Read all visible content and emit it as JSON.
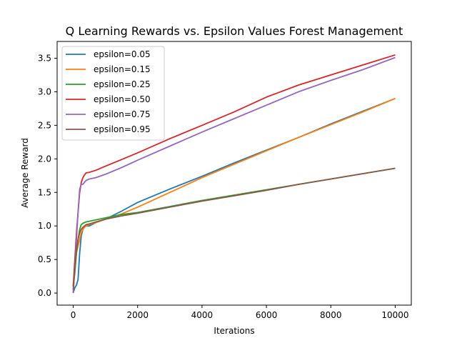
{
  "chart_data": {
    "type": "line",
    "title": "Q Learning Rewards vs. Epsilon Values Forest Management",
    "xlabel": "Iterations",
    "ylabel": "Average Reward",
    "xlim": [
      -500,
      10500
    ],
    "ylim": [
      -0.18,
      3.75
    ],
    "xticks": [
      0,
      2000,
      4000,
      6000,
      8000,
      10000
    ],
    "xtick_labels": [
      "0",
      "2000",
      "4000",
      "6000",
      "8000",
      "10000"
    ],
    "yticks": [
      0.0,
      0.5,
      1.0,
      1.5,
      2.0,
      2.5,
      3.0,
      3.5
    ],
    "ytick_labels": [
      "0.0",
      "0.5",
      "1.0",
      "1.5",
      "2.0",
      "2.5",
      "3.0",
      "3.5"
    ],
    "grid": false,
    "legend_position": "top-left",
    "series": [
      {
        "name": "epsilon=0.05",
        "color": "#1f77b4",
        "x": [
          0,
          50,
          100,
          150,
          200,
          250,
          300,
          350,
          400,
          500,
          700,
          1000,
          1500,
          2000,
          3000,
          4000,
          5000,
          6000,
          7000,
          8000,
          9000,
          10000
        ],
        "y": [
          0.0,
          0.08,
          0.12,
          0.2,
          0.6,
          0.85,
          0.95,
          0.98,
          1.0,
          1.0,
          1.05,
          1.1,
          1.22,
          1.35,
          1.55,
          1.74,
          1.94,
          2.13,
          2.32,
          2.52,
          2.71,
          2.9
        ]
      },
      {
        "name": "epsilon=0.15",
        "color": "#ff7f0e",
        "x": [
          0,
          50,
          100,
          150,
          200,
          250,
          300,
          350,
          400,
          500,
          700,
          1000,
          1500,
          2000,
          3000,
          4000,
          5000,
          6000,
          7000,
          8000,
          9000,
          10000
        ],
        "y": [
          0.0,
          0.35,
          0.6,
          0.7,
          0.8,
          0.9,
          0.95,
          0.98,
          1.0,
          1.02,
          1.05,
          1.1,
          1.18,
          1.28,
          1.5,
          1.72,
          1.92,
          2.12,
          2.32,
          2.51,
          2.7,
          2.9
        ]
      },
      {
        "name": "epsilon=0.25",
        "color": "#2ca02c",
        "x": [
          0,
          50,
          100,
          150,
          200,
          250,
          300,
          350,
          400,
          500,
          700,
          1000,
          1500,
          2000,
          3000,
          4000,
          5000,
          6000,
          7000,
          8000,
          9000,
          10000
        ],
        "y": [
          0.1,
          0.3,
          0.6,
          0.8,
          0.95,
          1.02,
          1.04,
          1.05,
          1.06,
          1.07,
          1.09,
          1.12,
          1.17,
          1.2,
          1.29,
          1.38,
          1.46,
          1.54,
          1.62,
          1.7,
          1.78,
          1.86
        ]
      },
      {
        "name": "epsilon=0.50",
        "color": "#d62728",
        "x": [
          0,
          50,
          100,
          150,
          200,
          250,
          300,
          350,
          400,
          500,
          700,
          1000,
          1500,
          2000,
          3000,
          4000,
          5000,
          6000,
          7000,
          8000,
          9000,
          10000
        ],
        "y": [
          0.1,
          0.5,
          0.9,
          1.2,
          1.5,
          1.65,
          1.72,
          1.76,
          1.79,
          1.8,
          1.83,
          1.89,
          1.99,
          2.09,
          2.3,
          2.5,
          2.7,
          2.92,
          3.1,
          3.25,
          3.4,
          3.55
        ]
      },
      {
        "name": "epsilon=0.75",
        "color": "#9467bd",
        "x": [
          0,
          50,
          100,
          150,
          200,
          250,
          300,
          350,
          400,
          500,
          700,
          1000,
          1500,
          2000,
          3000,
          4000,
          5000,
          6000,
          7000,
          8000,
          9000,
          10000
        ],
        "y": [
          0.0,
          0.4,
          0.8,
          1.2,
          1.55,
          1.62,
          1.62,
          1.65,
          1.68,
          1.7,
          1.72,
          1.77,
          1.87,
          1.98,
          2.19,
          2.4,
          2.6,
          2.8,
          3.0,
          3.17,
          3.33,
          3.51
        ]
      },
      {
        "name": "epsilon=0.95",
        "color": "#8c564b",
        "x": [
          0,
          50,
          100,
          150,
          200,
          250,
          300,
          350,
          400,
          500,
          700,
          1000,
          1500,
          2000,
          3000,
          4000,
          5000,
          6000,
          7000,
          8000,
          9000,
          10000
        ],
        "y": [
          0.05,
          0.4,
          0.65,
          0.8,
          0.9,
          0.95,
          0.98,
          1.0,
          1.02,
          1.03,
          1.06,
          1.1,
          1.15,
          1.19,
          1.28,
          1.37,
          1.45,
          1.53,
          1.62,
          1.7,
          1.78,
          1.86
        ]
      }
    ]
  }
}
